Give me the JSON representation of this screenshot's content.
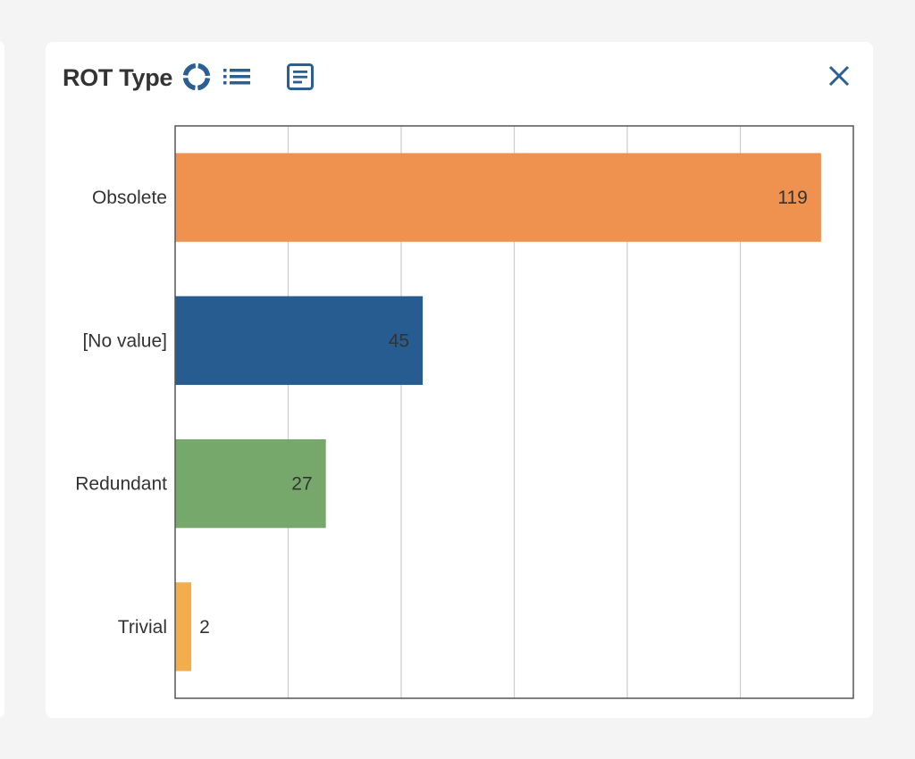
{
  "widget": {
    "title": "ROT Type",
    "icons": [
      "donut-chart-icon",
      "list-view-icon",
      "document-icon",
      "close-icon"
    ]
  },
  "chart_data": {
    "type": "bar",
    "orientation": "horizontal",
    "categories": [
      "Obsolete",
      "[No value]",
      "Redundant",
      "Trivial"
    ],
    "values": [
      119,
      45,
      27,
      2
    ],
    "colors": [
      "#ef914f",
      "#275c91",
      "#77a86b",
      "#f2ad4c"
    ],
    "xlim": [
      -1,
      125
    ],
    "grid": true,
    "legend": "none"
  }
}
